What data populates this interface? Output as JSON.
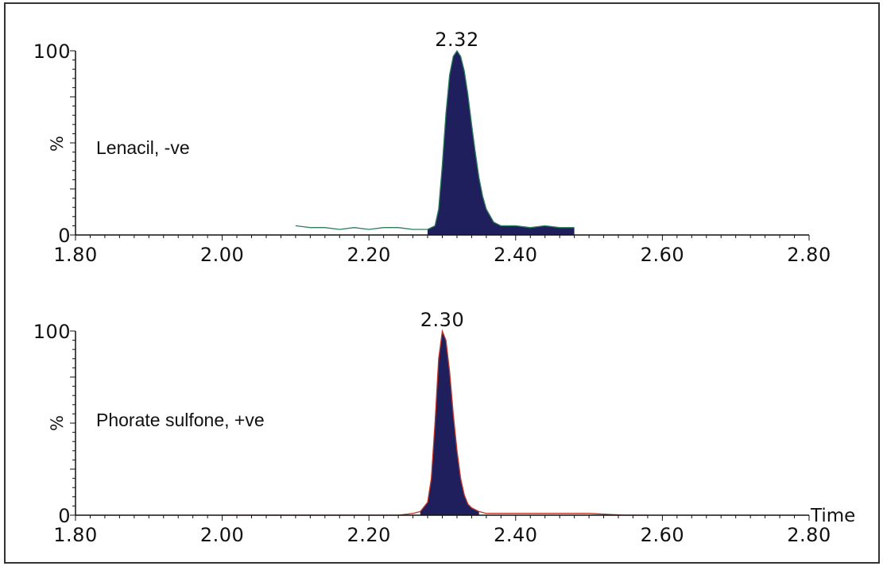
{
  "chart_data": [
    {
      "type": "area",
      "trace_label": "Lenacil, -ve",
      "peak_label": "2.32",
      "xlabel": "",
      "ylabel": "%",
      "xlim": [
        1.8,
        2.8
      ],
      "ylim": [
        0,
        100
      ],
      "x_ticks": [
        "1.80",
        "2.00",
        "2.20",
        "2.40",
        "2.60",
        "2.80"
      ],
      "y_ticks": [
        "0",
        "100"
      ],
      "line_color": "#2e7d5b",
      "fill_color": "#1f1f5e",
      "x": [
        2.1,
        2.12,
        2.14,
        2.16,
        2.18,
        2.2,
        2.22,
        2.24,
        2.26,
        2.28,
        2.29,
        2.295,
        2.3,
        2.305,
        2.31,
        2.315,
        2.32,
        2.325,
        2.33,
        2.335,
        2.34,
        2.345,
        2.35,
        2.355,
        2.36,
        2.37,
        2.38,
        2.4,
        2.42,
        2.44,
        2.46,
        2.48
      ],
      "values": [
        5,
        4,
        4,
        3,
        4,
        3,
        4,
        4,
        3,
        3,
        5,
        14,
        38,
        66,
        87,
        97,
        100,
        97,
        89,
        76,
        60,
        45,
        31,
        21,
        14,
        7,
        5,
        5,
        4,
        5,
        4,
        4
      ]
    },
    {
      "type": "area",
      "trace_label": "Phorate sulfone, +ve",
      "peak_label": "2.30",
      "xlabel": "Time",
      "ylabel": "%",
      "xlim": [
        1.8,
        2.8
      ],
      "ylim": [
        0,
        100
      ],
      "x_ticks": [
        "1.80",
        "2.00",
        "2.20",
        "2.40",
        "2.60",
        "2.80"
      ],
      "y_ticks": [
        "0",
        "100"
      ],
      "line_color": "#c0392b",
      "fill_color": "#1f1f5e",
      "x": [
        2.0,
        2.05,
        2.1,
        2.15,
        2.2,
        2.22,
        2.24,
        2.26,
        2.27,
        2.28,
        2.285,
        2.29,
        2.295,
        2.3,
        2.305,
        2.31,
        2.315,
        2.32,
        2.325,
        2.33,
        2.335,
        2.34,
        2.35,
        2.36,
        2.38,
        2.4,
        2.45,
        2.5,
        2.55,
        2.58
      ],
      "values": [
        0,
        0,
        0,
        0,
        0,
        0,
        0,
        1,
        2,
        7,
        20,
        50,
        85,
        100,
        95,
        78,
        55,
        35,
        20,
        11,
        6,
        4,
        2,
        1,
        1,
        1,
        1,
        1,
        0,
        0
      ]
    }
  ]
}
